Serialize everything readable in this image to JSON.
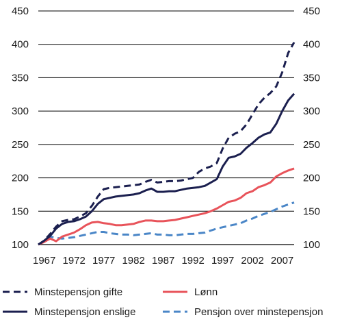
{
  "chart_data": {
    "type": "line",
    "title": "",
    "xlabel": "",
    "ylabel": "",
    "xlim": [
      1966,
      2009
    ],
    "ylim": [
      100,
      450
    ],
    "x_ticks": [
      1967,
      1972,
      1977,
      1982,
      1987,
      1992,
      1997,
      2002,
      2007
    ],
    "y_ticks": [
      100,
      150,
      200,
      250,
      300,
      350,
      400,
      450
    ],
    "grid": "horizontal",
    "legend_position": "bottom",
    "series": [
      {
        "name": "Minstepensjon gifte",
        "color": "#1b1f4f",
        "style": "dashed",
        "x": [
          1966,
          1967,
          1968,
          1969,
          1970,
          1971,
          1972,
          1973,
          1974,
          1975,
          1976,
          1977,
          1978,
          1979,
          1980,
          1981,
          1982,
          1983,
          1984,
          1985,
          1986,
          1987,
          1988,
          1989,
          1990,
          1991,
          1992,
          1993,
          1994,
          1995,
          1996,
          1997,
          1998,
          1999,
          2000,
          2001,
          2002,
          2003,
          2004,
          2005,
          2006,
          2007,
          2008,
          2009
        ],
        "values": [
          100,
          106,
          116,
          127,
          135,
          137,
          138,
          142,
          147,
          158,
          172,
          183,
          185,
          186,
          187,
          188,
          189,
          190,
          194,
          197,
          193,
          194,
          195,
          195,
          196,
          198,
          200,
          209,
          214,
          217,
          222,
          244,
          260,
          266,
          270,
          280,
          295,
          310,
          320,
          327,
          337,
          358,
          387,
          403
        ]
      },
      {
        "name": "Minstepensjon enslige",
        "color": "#1b1f4f",
        "style": "solid",
        "x": [
          1966,
          1967,
          1968,
          1969,
          1970,
          1971,
          1972,
          1973,
          1974,
          1975,
          1976,
          1977,
          1978,
          1979,
          1980,
          1981,
          1982,
          1983,
          1984,
          1985,
          1986,
          1987,
          1988,
          1989,
          1990,
          1991,
          1992,
          1993,
          1994,
          1995,
          1996,
          1997,
          1998,
          1999,
          2000,
          2001,
          2002,
          2003,
          2004,
          2005,
          2006,
          2007,
          2008,
          2009
        ],
        "values": [
          100,
          106,
          113,
          124,
          131,
          134,
          135,
          138,
          142,
          150,
          161,
          168,
          170,
          172,
          173,
          174,
          175,
          177,
          181,
          184,
          179,
          179,
          180,
          180,
          182,
          184,
          185,
          186,
          188,
          193,
          198,
          217,
          230,
          232,
          236,
          245,
          252,
          260,
          265,
          268,
          281,
          300,
          316,
          326
        ]
      },
      {
        "name": "Lønn",
        "color": "#e8535a",
        "style": "solid",
        "x": [
          1966,
          1967,
          1968,
          1969,
          1970,
          1971,
          1972,
          1973,
          1974,
          1975,
          1976,
          1977,
          1978,
          1979,
          1980,
          1981,
          1982,
          1983,
          1984,
          1985,
          1986,
          1987,
          1988,
          1989,
          1990,
          1991,
          1992,
          1993,
          1994,
          1995,
          1996,
          1997,
          1998,
          1999,
          2000,
          2001,
          2002,
          2003,
          2004,
          2005,
          2006,
          2007,
          2008,
          2009
        ],
        "values": [
          100,
          104,
          109,
          105,
          112,
          115,
          118,
          123,
          129,
          133,
          134,
          132,
          131,
          129,
          129,
          130,
          131,
          134,
          136,
          136,
          135,
          135,
          136,
          137,
          139,
          141,
          143,
          145,
          147,
          150,
          154,
          159,
          164,
          166,
          170,
          177,
          180,
          186,
          189,
          193,
          202,
          207,
          211,
          214
        ]
      },
      {
        "name": "Pensjon over minstepensjon",
        "color": "#4a86c7",
        "style": "dashed",
        "x": [
          1966,
          1967,
          1968,
          1969,
          1970,
          1971,
          1972,
          1973,
          1974,
          1975,
          1976,
          1977,
          1978,
          1979,
          1980,
          1981,
          1982,
          1983,
          1984,
          1985,
          1986,
          1987,
          1988,
          1989,
          1990,
          1991,
          1992,
          1993,
          1994,
          1995,
          1996,
          1997,
          1998,
          1999,
          2000,
          2001,
          2002,
          2003,
          2004,
          2005,
          2006,
          2007,
          2008,
          2009
        ],
        "values": [
          100,
          105,
          112,
          110,
          109,
          110,
          111,
          113,
          115,
          117,
          119,
          119,
          117,
          116,
          115,
          115,
          114,
          115,
          116,
          117,
          115,
          115,
          114,
          114,
          115,
          116,
          116,
          117,
          118,
          121,
          124,
          126,
          128,
          130,
          132,
          136,
          139,
          143,
          146,
          149,
          153,
          157,
          160,
          163
        ]
      }
    ]
  }
}
